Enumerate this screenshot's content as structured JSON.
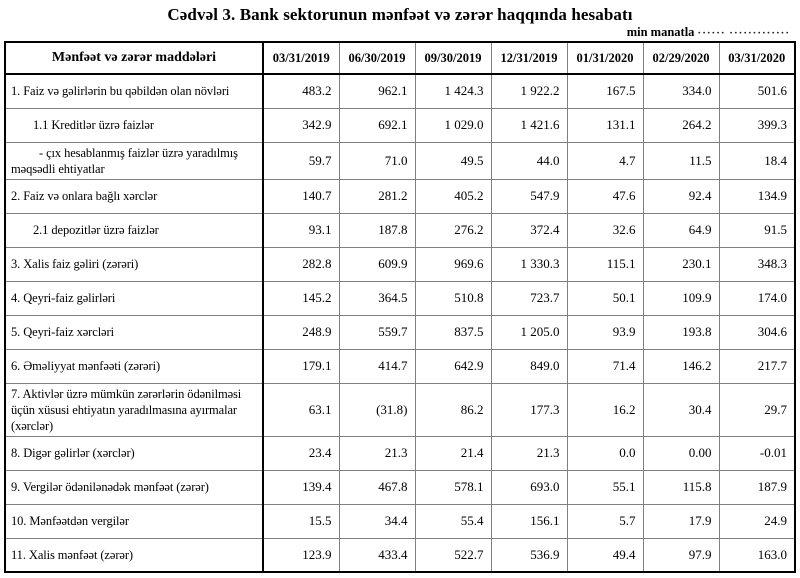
{
  "title": "Cədvəl 3. Bank sektorunun mənfəət və zərər haqqında hesabatı",
  "unit_note": "min manatla",
  "unit_dots": "······ ·············",
  "table": {
    "label_header": "Mənfəət və zərər maddələri",
    "columns": [
      "03/31/2019",
      "06/30/2019",
      "09/30/2019",
      "12/31/2019",
      "01/31/2020",
      "02/29/2020",
      "03/31/2020"
    ],
    "rows": [
      {
        "label": "1. Faiz və gəlirlərin bu qəbildən olan növləri",
        "indent": 0,
        "values": [
          "483.2",
          "962.1",
          "1 424.3",
          "1 922.2",
          "167.5",
          "334.0",
          "501.6"
        ]
      },
      {
        "label": "1.1 Kreditlər üzrə faizlər",
        "indent": 1,
        "values": [
          "342.9",
          "692.1",
          "1 029.0",
          "1 421.6",
          "131.1",
          "264.2",
          "399.3"
        ]
      },
      {
        "label": "-  çıx hesablanmış faizlər üzrə yaradılmış məqsədli ehtiyatlar",
        "indent": 0,
        "hang": true,
        "values": [
          "59.7",
          "71.0",
          "49.5",
          "44.0",
          "4.7",
          "11.5",
          "18.4"
        ]
      },
      {
        "label": "2. Faiz və onlara bağlı xərclər",
        "indent": 0,
        "values": [
          "140.7",
          "281.2",
          "405.2",
          "547.9",
          "47.6",
          "92.4",
          "134.9"
        ]
      },
      {
        "label": "2.1 depozitlər üzrə faizlər",
        "indent": 1,
        "values": [
          "93.1",
          "187.8",
          "276.2",
          "372.4",
          "32.6",
          "64.9",
          "91.5"
        ]
      },
      {
        "label": "3. Xalis faiz gəliri (zərəri)",
        "indent": 0,
        "values": [
          "282.8",
          "609.9",
          "969.6",
          "1 330.3",
          "115.1",
          "230.1",
          "348.3"
        ]
      },
      {
        "label": "4. Qeyri-faiz gəlirləri",
        "indent": 0,
        "values": [
          "145.2",
          "364.5",
          "510.8",
          "723.7",
          "50.1",
          "109.9",
          "174.0"
        ]
      },
      {
        "label": "5. Qeyri-faiz xərcləri",
        "indent": 0,
        "values": [
          "248.9",
          "559.7",
          "837.5",
          "1 205.0",
          "93.9",
          "193.8",
          "304.6"
        ]
      },
      {
        "label": "6. Əməliyyat mənfəəti (zərəri)",
        "indent": 0,
        "values": [
          "179.1",
          "414.7",
          "642.9",
          "849.0",
          "71.4",
          "146.2",
          "217.7"
        ]
      },
      {
        "label": "7. Aktivlər üzrə mümkün zərərlərin ödənilməsi üçün xüsusi ehtiyatın yaradılmasına ayırmalar (xərclər)",
        "indent": 0,
        "values": [
          "63.1",
          "(31.8)",
          "86.2",
          "177.3",
          "16.2",
          "30.4",
          "29.7"
        ]
      },
      {
        "label": "8. Digər gəlirlər (xərclər)",
        "indent": 0,
        "values": [
          "23.4",
          "21.3",
          "21.4",
          "21.3",
          "0.0",
          "0.00",
          "-0.01"
        ]
      },
      {
        "label": "9. Vergilər ödənilənədək mənfəət (zərər)",
        "indent": 0,
        "values": [
          "139.4",
          "467.8",
          "578.1",
          "693.0",
          "55.1",
          "115.8",
          "187.9"
        ]
      },
      {
        "label": "10. Mənfəətdən vergilər",
        "indent": 0,
        "values": [
          "15.5",
          "34.4",
          "55.4",
          "156.1",
          "5.7",
          "17.9",
          "24.9"
        ]
      },
      {
        "label": "11. Xalis mənfəət (zərər)",
        "indent": 0,
        "values": [
          "123.9",
          "433.4",
          "522.7",
          "536.9",
          "49.4",
          "97.9",
          "163.0"
        ]
      }
    ]
  }
}
